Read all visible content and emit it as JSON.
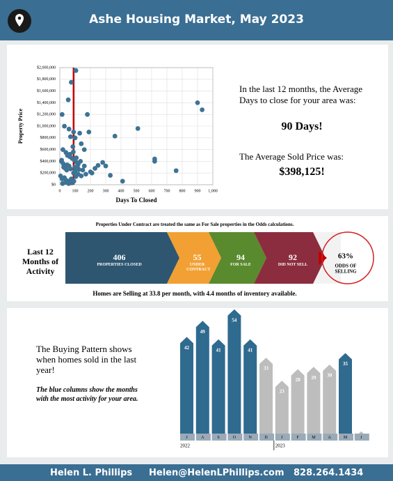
{
  "header": {
    "title": "Ashe Housing Market, May 2023"
  },
  "chart_data": [
    {
      "type": "scatter",
      "x_label": "Days To Closed",
      "y_label": "Property Price",
      "color": "#3d7394",
      "grid": true,
      "reference_x": 90,
      "reference_color": "#c00000",
      "x": [
        105,
        75,
        55,
        15,
        180,
        900,
        930,
        30,
        60,
        90,
        130,
        190,
        510,
        360,
        620,
        620,
        760,
        410,
        280,
        300,
        250,
        230,
        330,
        210,
        160,
        140,
        100,
        70,
        20,
        40,
        50,
        65,
        80,
        85,
        95,
        110,
        120,
        10,
        25,
        35,
        45,
        60,
        70,
        90,
        100,
        115,
        125,
        150,
        170,
        5,
        15,
        30,
        40,
        55,
        75,
        85,
        105,
        120,
        140,
        200,
        12,
        22,
        48,
        66,
        88,
        98,
        108,
        135,
        160,
        18,
        38,
        58,
        78,
        92
      ],
      "values": [
        1950000,
        1750000,
        1450000,
        1200000,
        1200000,
        1400000,
        1280000,
        1000000,
        950000,
        900000,
        880000,
        900000,
        960000,
        830000,
        440000,
        400000,
        240000,
        60000,
        380000,
        320000,
        330000,
        280000,
        160000,
        200000,
        600000,
        700000,
        800000,
        820000,
        600000,
        550000,
        500000,
        480000,
        450000,
        650000,
        420000,
        380000,
        350000,
        400000,
        300000,
        280000,
        250000,
        320000,
        270000,
        200000,
        230000,
        300000,
        260000,
        250000,
        180000,
        150000,
        100000,
        120000,
        80000,
        60000,
        100000,
        50000,
        140000,
        180000,
        150000,
        220000,
        420000,
        360000,
        340000,
        520000,
        560000,
        300000,
        460000,
        400000,
        320000,
        20000,
        40000,
        20000,
        30000,
        60000
      ],
      "xlim": [
        0,
        1000
      ],
      "ylim": [
        0,
        2000000
      ],
      "xticks": [
        0,
        100,
        200,
        300,
        400,
        500,
        600,
        700,
        800,
        900,
        {
          "value": 1000,
          "label": "1,000"
        }
      ],
      "yticks": [
        {
          "value": 0,
          "label": "$0"
        },
        {
          "value": 200000,
          "label": "$200,000"
        },
        {
          "value": 400000,
          "label": "$400,000"
        },
        {
          "value": 600000,
          "label": "$600,000"
        },
        {
          "value": 800000,
          "label": "$800,000"
        },
        {
          "value": 1000000,
          "label": "$1,000,000"
        },
        {
          "value": 1200000,
          "label": "$1,200,000"
        },
        {
          "value": 1400000,
          "label": "$1,400,000"
        },
        {
          "value": 1600000,
          "label": "$1,600,000"
        },
        {
          "value": 1800000,
          "label": "$1,800,000"
        },
        {
          "value": 2000000,
          "label": "$2,000,000"
        }
      ]
    },
    {
      "type": "bar",
      "categories": [
        "J",
        "A",
        "S",
        "O",
        "N",
        "D",
        "J",
        "F",
        "M",
        "A",
        "M",
        "J"
      ],
      "values": [
        42,
        49,
        41,
        54,
        41,
        33,
        23,
        28,
        29,
        30,
        35,
        1
      ],
      "colors": [
        "#2f6a8f",
        "#2f6a8f",
        "#2f6a8f",
        "#2f6a8f",
        "#2f6a8f",
        "#bdbdbd",
        "#bdbdbd",
        "#bdbdbd",
        "#bdbdbd",
        "#bdbdbd",
        "#2f6a8f",
        "#bdbdbd"
      ],
      "year_labels": [
        "2022",
        "2023"
      ]
    }
  ],
  "summary": {
    "days_text": "In the last 12 months, the Average Days to close for your area was:",
    "days": "90 Days!",
    "price_text": "The Average Sold Price was:",
    "price": "$398,125!"
  },
  "activity": {
    "title": "Last 12 Months of Activity",
    "note": "Properties Under Contract are treated the same as For Sale properties in the Odds calculations.",
    "stages": [
      {
        "value": 406,
        "label": "PROPERTIES CLOSED",
        "color": "#2e5670"
      },
      {
        "value": 55,
        "label": "UNDER CONTRACT",
        "color": "#f2a033"
      },
      {
        "value": 94,
        "label": "FOR SALE",
        "color": "#5a8a2e"
      },
      {
        "value": 92,
        "label": "DID NOT SELL",
        "color": "#8b2d3f"
      }
    ],
    "odds": {
      "value": 63,
      "label": "63%",
      "caption": "ODDS OF SELLING"
    },
    "footnote": "Homes are Selling at 33.8 per month, with 4.4 months of inventory available."
  },
  "pattern": {
    "text": "The Buying Pattern shows when homes sold in the last year!",
    "note": "The blue columns show the months with the most activity for your area."
  },
  "footer": {
    "name": "Helen L. Phillips",
    "email": "Helen@HelenLPhillips.com",
    "phone": "828.264.1434"
  }
}
